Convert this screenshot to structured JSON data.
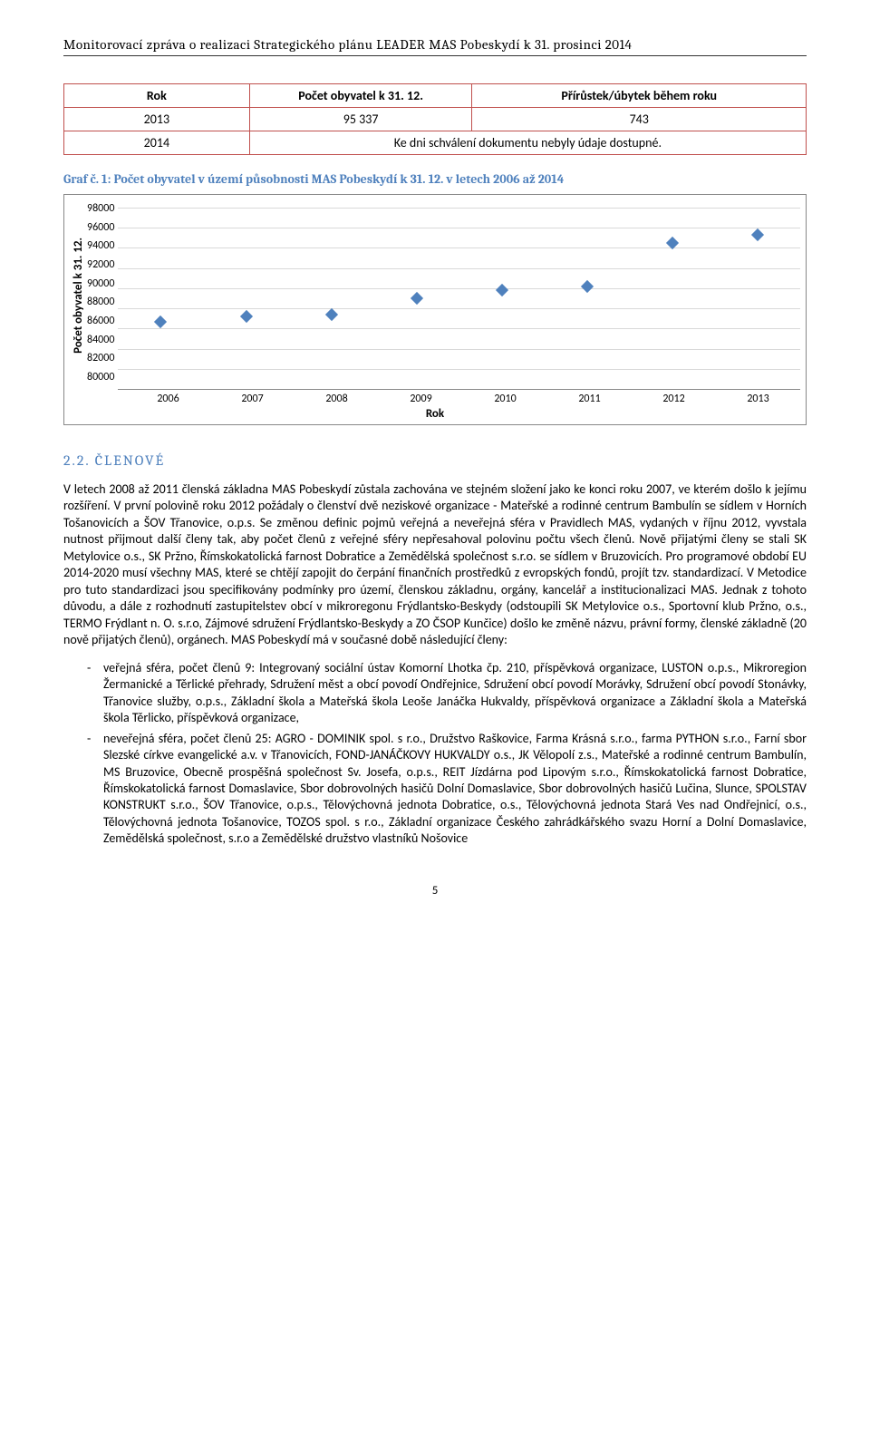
{
  "header": "Monitorovací zpráva o realizaci Strategického plánu LEADER MAS Pobeskydí k 31. prosinci 2014",
  "table": {
    "headers": [
      "Rok",
      "Počet obyvatel k 31. 12.",
      "Přírůstek/úbytek během roku"
    ],
    "rows": [
      [
        "2013",
        "95 337",
        "743"
      ],
      [
        "2014",
        "Ke dni schválení dokumentu nebyly údaje dostupné."
      ]
    ]
  },
  "chart": {
    "caption": "Graf č. 1: Počet obyvatel v území působnosti MAS Pobeskydí k 31. 12. v letech 2006 až 2014",
    "type": "line",
    "y_label": "Počet obyvatel k 31. 12.",
    "x_label": "Rok",
    "y_min": 80000,
    "y_max": 98000,
    "y_step": 2000,
    "y_ticks": [
      "98000",
      "96000",
      "94000",
      "92000",
      "90000",
      "88000",
      "86000",
      "84000",
      "82000",
      "80000"
    ],
    "x_ticks": [
      "2006",
      "2007",
      "2008",
      "2009",
      "2010",
      "2011",
      "2012",
      "2013"
    ],
    "values": [
      86700,
      87200,
      87400,
      89000,
      89800,
      90200,
      94500,
      95337
    ],
    "marker_color": "#4f81bd",
    "grid_color": "#d9d9d9",
    "axis_color": "#888888"
  },
  "section": {
    "number": "2.2.",
    "title": "ČLENOVÉ"
  },
  "paragraph1": "V letech 2008 až 2011 členská základna MAS Pobeskydí zůstala zachována ve stejném složení jako ke konci roku 2007, ve kterém došlo k jejímu rozšíření. V první polovině roku 2012 požádaly o členství dvě neziskové organizace - Mateřské a rodinné centrum Bambulín se sídlem v Horních Tošanovicích a ŠOV Třanovice, o.p.s. Se změnou definic pojmů veřejná a neveřejná sféra v Pravidlech MAS, vydaných v říjnu 2012, vyvstala nutnost přijmout další členy tak, aby počet členů z veřejné sféry nepřesahoval polovinu počtu všech členů. Nově přijatými členy se stali SK Metylovice o.s., SK Pržno, Římskokatolická farnost Dobratice a Zemědělská společnost s.r.o. se sídlem v Bruzovicích. Pro programové období EU 2014-2020 musí všechny MAS, které se chtějí zapojit do čerpání finančních prostředků z evropských fondů, projít tzv. standardizací. V Metodice pro tuto standardizaci jsou specifikovány podmínky pro území, členskou základnu, orgány, kancelář a institucionalizaci MAS. Jednak z tohoto důvodu, a dále z rozhodnutí zastupitelstev obcí v mikroregonu Frýdlantsko-Beskydy (odstoupili SK Metylovice o.s., Sportovní klub Pržno, o.s., TERMO Frýdlant n. O. s.r.o, Zájmové sdružení Frýdlantsko-Beskydy a ZO ČSOP Kunčice) došlo ke změně názvu, právní formy, členské základně (20 nově přijatých členů), orgánech. MAS Pobeskydí má v současné době následující členy:",
  "bullets": [
    "veřejná sféra, počet členů 9: Integrovaný sociální ústav Komorní Lhotka čp. 210, příspěvková organizace, LUSTON o.p.s., Mikroregion Žermanické a Těrlické přehrady, Sdružení měst a obcí povodí Ondřejnice, Sdružení obcí povodí Morávky, Sdružení obcí povodí Stonávky, Třanovice služby, o.p.s., Základní škola a Mateřská škola Leoše Janáčka Hukvaldy, příspěvková organizace a Základní škola a Mateřská škola Těrlicko, příspěvková organizace,",
    "neveřejná sféra, počet členů 25: AGRO - DOMINIK spol. s r.o., Družstvo Raškovice, Farma Krásná s.r.o., farma PYTHON s.r.o., Farní sbor Slezské církve evangelické a.v. v Třanovicích, FOND-JANÁČKOVY HUKVALDY o.s., JK Vělopolí z.s., Mateřské a rodinné centrum Bambulín, MS Bruzovice, Obecně prospěšná společnost Sv. Josefa, o.p.s., REIT Jízdárna pod Lipovým s.r.o., Římskokatolická farnost Dobratice, Římskokatolická farnost Domaslavice, Sbor dobrovolných hasičů Dolní Domaslavice, Sbor dobrovolných hasičů Lučina, Slunce, SPOLSTAV KONSTRUKT s.r.o., ŠOV Třanovice, o.p.s., Tělovýchovná jednota Dobratice, o.s., Tělovýchovná jednota Stará Ves nad Ondřejnicí, o.s., Tělovýchovná jednota Tošanovice, TOZOS spol. s r.o., Základní organizace Českého zahrádkářského svazu Horní a Dolní Domaslavice, Zemědělská společnost, s.r.o a Zemědělské družstvo vlastníků Nošovice"
  ],
  "page_number": "5"
}
